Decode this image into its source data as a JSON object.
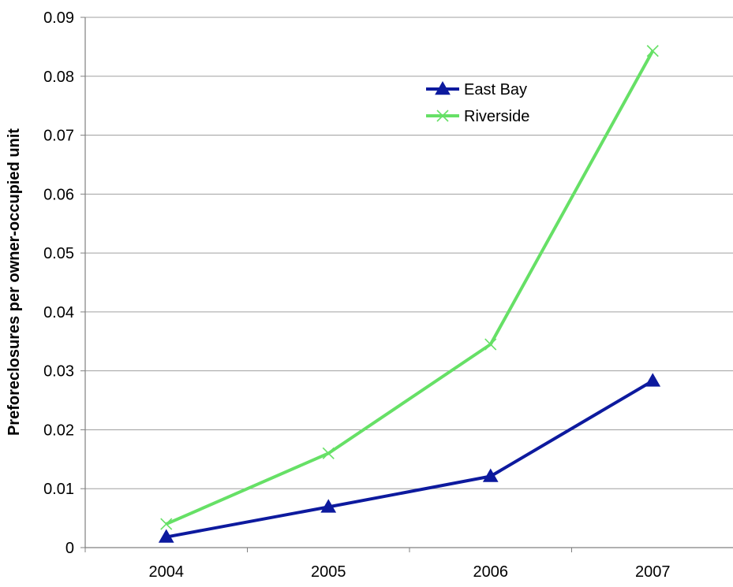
{
  "chart_data": {
    "type": "line",
    "title": "",
    "xlabel": "",
    "ylabel": "Preforeclosures per owner-occupied unit",
    "categories": [
      "2004",
      "2005",
      "2006",
      "2007"
    ],
    "ylim": [
      0,
      0.09
    ],
    "yticks": [
      0,
      0.01,
      0.02,
      0.03,
      0.04,
      0.05,
      0.06,
      0.07,
      0.08,
      0.09
    ],
    "ytick_labels": [
      "0",
      "0.01",
      "0.02",
      "0.03",
      "0.04",
      "0.05",
      "0.06",
      "0.07",
      "0.08",
      "0.09"
    ],
    "grid": "horizontal",
    "legend": "top-center",
    "series": [
      {
        "name": "East Bay",
        "values": [
          0.0018,
          0.0069,
          0.0121,
          0.0283
        ],
        "color": "#0d1a9e",
        "marker": "triangle"
      },
      {
        "name": "Riverside",
        "values": [
          0.004,
          0.016,
          0.0345,
          0.0843
        ],
        "color": "#66e066",
        "marker": "x"
      }
    ]
  }
}
